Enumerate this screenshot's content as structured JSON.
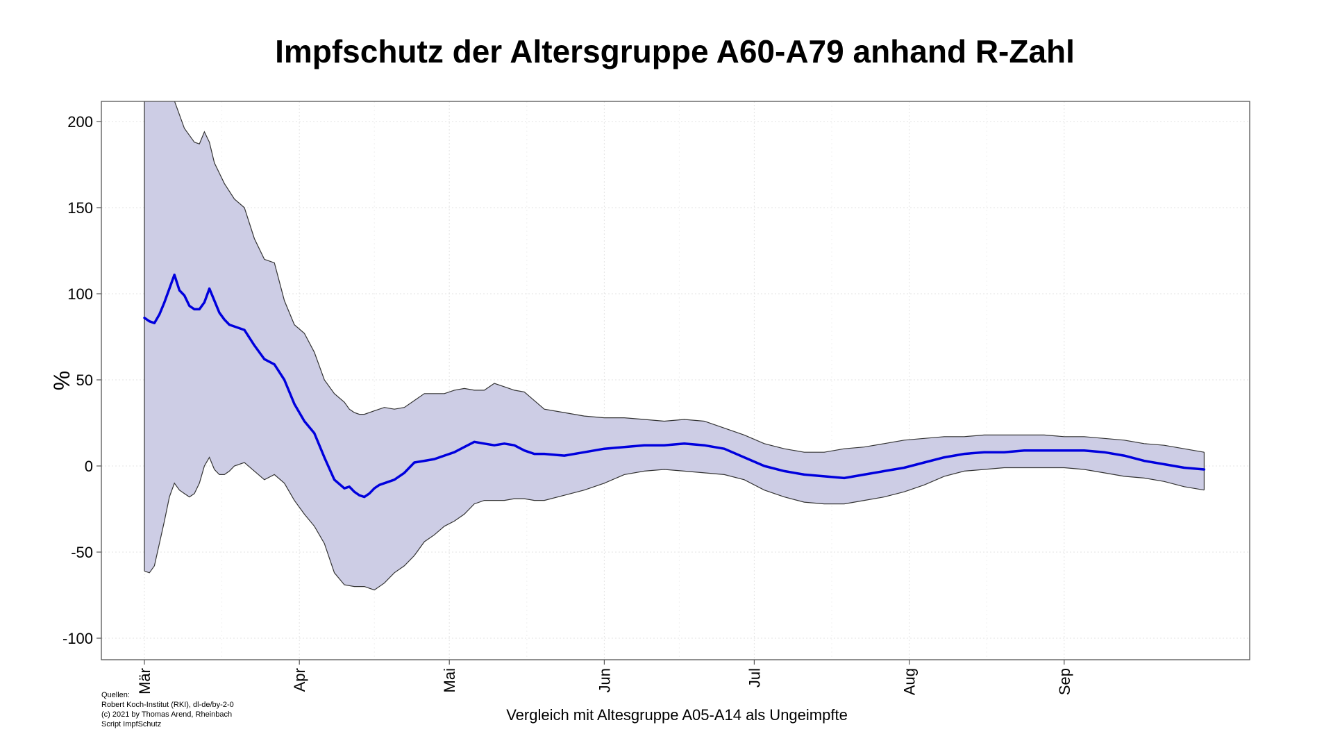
{
  "chart_data": {
    "type": "line",
    "title": "Impfschutz der Altersgruppe A60-A79 anhand R-Zahl",
    "xlabel": "Vergleich mit Altesgruppe A05-A14 als Ungeimpfte",
    "ylabel": "%",
    "ylim": [
      -113,
      213
    ],
    "yticks": [
      -100,
      -50,
      0,
      50,
      100,
      150,
      200
    ],
    "grid": true,
    "x_ticks": [
      {
        "label": "Mär",
        "day": 0
      },
      {
        "label": "Apr",
        "day": 31
      },
      {
        "label": "Mai",
        "day": 61
      },
      {
        "label": "Jun",
        "day": 92
      },
      {
        "label": "Jul",
        "day": 122
      },
      {
        "label": "Aug",
        "day": 153
      },
      {
        "label": "Sep",
        "day": 184
      }
    ],
    "xlim": [
      0,
      213
    ],
    "colors": {
      "line": "#0000dd",
      "band_fill": "#cdcde5",
      "band_edge": "#333333",
      "grid": "#e3e3e3"
    },
    "series": [
      {
        "role": "estimate",
        "x": [
          0,
          1,
          2,
          3,
          4,
          5,
          6,
          7,
          8,
          9,
          10,
          11,
          12,
          13,
          14,
          15,
          16,
          17,
          18,
          20,
          22,
          24,
          26,
          28,
          30,
          32,
          34,
          36,
          38,
          40,
          41,
          42,
          43,
          44,
          45,
          46,
          47,
          48,
          50,
          52,
          54,
          56,
          58,
          60,
          62,
          64,
          66,
          68,
          70,
          72,
          74,
          76,
          78,
          80,
          84,
          88,
          92,
          96,
          100,
          104,
          108,
          112,
          116,
          120,
          124,
          128,
          132,
          136,
          140,
          144,
          148,
          152,
          156,
          160,
          164,
          168,
          172,
          176,
          180,
          184,
          188,
          192,
          196,
          200,
          204,
          208,
          212
        ],
        "values": [
          86,
          84,
          83,
          88,
          95,
          103,
          111,
          102,
          99,
          93,
          91,
          91,
          95,
          103,
          96,
          89,
          85,
          82,
          81,
          79,
          70,
          62,
          59,
          50,
          36,
          26,
          19,
          5,
          -8,
          -13,
          -12,
          -15,
          -17,
          -18,
          -16,
          -13,
          -11,
          -10,
          -8,
          -4,
          2,
          3,
          4,
          6,
          8,
          11,
          14,
          13,
          12,
          13,
          12,
          9,
          7,
          7,
          6,
          8,
          10,
          11,
          12,
          12,
          13,
          12,
          10,
          5,
          0,
          -3,
          -5,
          -6,
          -7,
          -5,
          -3,
          -1,
          2,
          5,
          7,
          8,
          8,
          9,
          9,
          9,
          9,
          8,
          6,
          3,
          1,
          -1,
          -2
        ]
      },
      {
        "role": "upper_bound",
        "x": [
          0,
          2,
          4,
          6,
          8,
          9,
          10,
          11,
          12,
          13,
          14,
          16,
          18,
          20,
          22,
          24,
          26,
          28,
          30,
          32,
          34,
          36,
          38,
          40,
          41,
          42,
          43,
          44,
          46,
          48,
          50,
          52,
          54,
          56,
          58,
          60,
          62,
          64,
          66,
          68,
          70,
          72,
          74,
          76,
          78,
          80,
          84,
          88,
          92,
          96,
          100,
          104,
          108,
          112,
          116,
          120,
          124,
          128,
          132,
          136,
          140,
          144,
          148,
          152,
          156,
          160,
          164,
          168,
          172,
          176,
          180,
          184,
          188,
          192,
          196,
          200,
          204,
          208,
          212
        ],
        "values": [
          230,
          225,
          220,
          212,
          196,
          192,
          188,
          187,
          194,
          188,
          176,
          164,
          155,
          150,
          132,
          120,
          118,
          96,
          82,
          77,
          66,
          50,
          42,
          37,
          33,
          31,
          30,
          30,
          32,
          34,
          33,
          34,
          38,
          42,
          42,
          42,
          44,
          45,
          44,
          44,
          48,
          46,
          44,
          43,
          38,
          33,
          31,
          29,
          28,
          28,
          27,
          26,
          27,
          26,
          22,
          18,
          13,
          10,
          8,
          8,
          10,
          11,
          13,
          15,
          16,
          17,
          17,
          18,
          18,
          18,
          18,
          17,
          17,
          16,
          15,
          13,
          12,
          10,
          8
        ]
      },
      {
        "role": "lower_bound",
        "x": [
          0,
          1,
          2,
          3,
          4,
          5,
          6,
          7,
          8,
          9,
          10,
          11,
          12,
          13,
          14,
          15,
          16,
          17,
          18,
          20,
          22,
          24,
          26,
          28,
          30,
          32,
          34,
          36,
          38,
          40,
          42,
          44,
          46,
          48,
          50,
          52,
          54,
          56,
          58,
          60,
          62,
          64,
          66,
          68,
          70,
          72,
          74,
          76,
          78,
          80,
          84,
          88,
          92,
          96,
          100,
          104,
          108,
          112,
          116,
          120,
          124,
          128,
          132,
          136,
          140,
          144,
          148,
          152,
          156,
          160,
          164,
          168,
          172,
          176,
          180,
          184,
          188,
          192,
          196,
          200,
          204,
          208,
          212
        ],
        "values": [
          -61,
          -62,
          -58,
          -45,
          -32,
          -18,
          -10,
          -14,
          -16,
          -18,
          -16,
          -10,
          0,
          5,
          -2,
          -5,
          -5,
          -3,
          0,
          2,
          -3,
          -8,
          -5,
          -10,
          -20,
          -28,
          -35,
          -45,
          -62,
          -69,
          -70,
          -70,
          -72,
          -68,
          -62,
          -58,
          -52,
          -44,
          -40,
          -35,
          -32,
          -28,
          -22,
          -20,
          -20,
          -20,
          -19,
          -19,
          -20,
          -20,
          -17,
          -14,
          -10,
          -5,
          -3,
          -2,
          -3,
          -4,
          -5,
          -8,
          -14,
          -18,
          -21,
          -22,
          -22,
          -20,
          -18,
          -15,
          -11,
          -6,
          -3,
          -2,
          -1,
          -1,
          -1,
          -1,
          -2,
          -4,
          -6,
          -7,
          -9,
          -12,
          -14
        ]
      }
    ]
  },
  "sources": [
    "Quellen:",
    "Robert Koch-Institut (RKI), dl-de/by-2-0",
    "(c) 2021 by Thomas Arend, Rheinbach",
    "Script ImpfSchutz"
  ]
}
